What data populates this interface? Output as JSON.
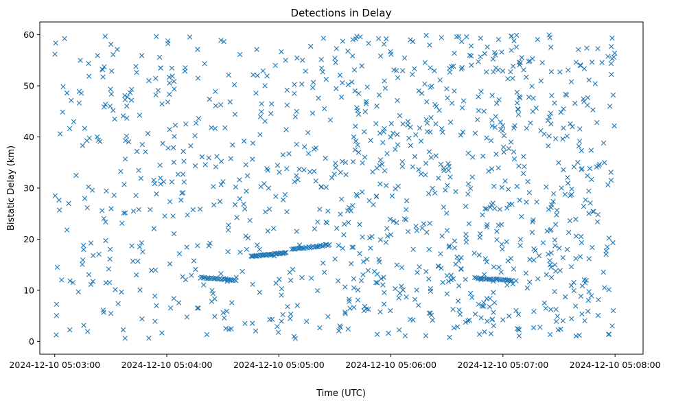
{
  "chart_data": {
    "type": "scatter",
    "title": "Detections in Delay",
    "xlabel": "Time (UTC)",
    "ylabel": "Bistatic Delay (km)",
    "marker": "x",
    "color": "#1f77b4",
    "grid": false,
    "x_range": [
      "2024-12-10 05:02:52",
      "2024-12-10 05:08:15"
    ],
    "ylim": [
      -2.5,
      62.5
    ],
    "x_ticks": [
      "2024-12-10 05:03:00",
      "2024-12-10 05:04:00",
      "2024-12-10 05:05:00",
      "2024-12-10 05:06:00",
      "2024-12-10 05:07:00",
      "2024-12-10 05:08:00"
    ],
    "y_ticks": [
      0,
      10,
      20,
      30,
      40,
      50,
      60
    ],
    "background_noise": {
      "description": "approx. 1100 scattered detections spread uniformly over 05:03:00–05:08:00 and 0–60 km, denser after 05:05:30",
      "count": 1100,
      "time_range": [
        "2024-12-10 05:03:00",
        "2024-12-10 05:08:00"
      ],
      "delay_range_km": [
        0.5,
        60
      ]
    },
    "tracks": [
      {
        "start": "2024-12-10 05:04:18",
        "end": "2024-12-10 05:04:37",
        "delay_start_km": 12.5,
        "delay_end_km": 12.0,
        "points": 26
      },
      {
        "start": "2024-12-10 05:04:45",
        "end": "2024-12-10 05:05:04",
        "delay_start_km": 16.6,
        "delay_end_km": 17.4,
        "points": 34
      },
      {
        "start": "2024-12-10 05:05:07",
        "end": "2024-12-10 05:05:27",
        "delay_start_km": 18.0,
        "delay_end_km": 18.9,
        "points": 28
      },
      {
        "start": "2024-12-10 05:06:45",
        "end": "2024-12-10 05:07:05",
        "delay_start_km": 12.4,
        "delay_end_km": 11.9,
        "points": 26
      }
    ]
  }
}
